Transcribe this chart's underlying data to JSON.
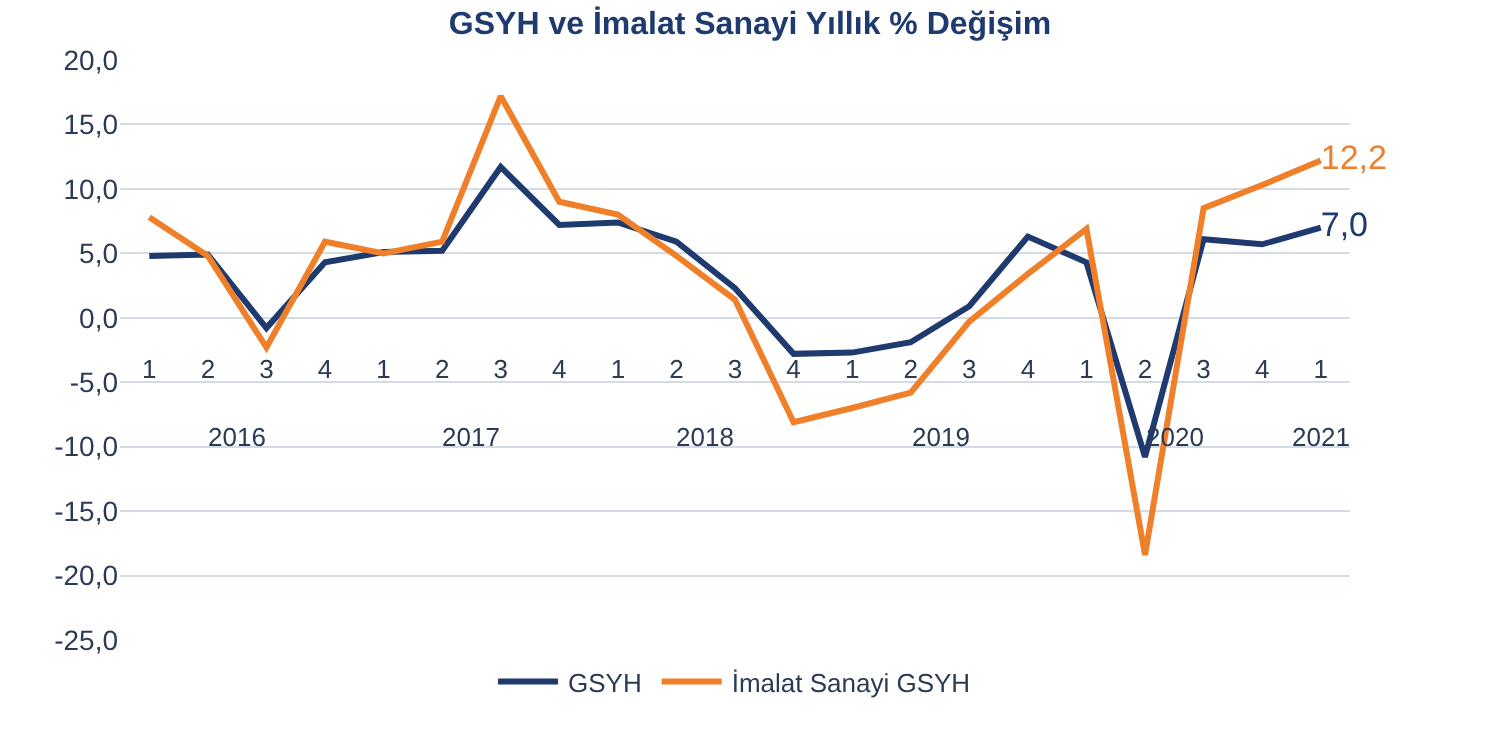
{
  "chart_data": {
    "type": "line",
    "title": "GSYH ve İmalat Sanayi Yıllık % Değişim",
    "categories": [
      "1",
      "2",
      "3",
      "4",
      "1",
      "2",
      "3",
      "4",
      "1",
      "2",
      "3",
      "4",
      "1",
      "2",
      "3",
      "4",
      "1",
      "2",
      "3",
      "4",
      "1"
    ],
    "annotations": [
      "2016",
      "2017",
      "2018",
      "2019",
      "2020",
      "2021"
    ],
    "series": [
      {
        "name": "GSYH",
        "color": "#1f3a6e",
        "values": [
          4.8,
          4.9,
          -0.8,
          4.3,
          5.1,
          5.2,
          11.7,
          7.2,
          7.4,
          5.9,
          2.3,
          -2.8,
          -2.7,
          -1.9,
          0.9,
          6.3,
          4.3,
          -10.8,
          6.1,
          5.7,
          7.0
        ],
        "value_labels": [
          null,
          null,
          null,
          null,
          null,
          null,
          null,
          null,
          null,
          null,
          null,
          null,
          null,
          null,
          null,
          null,
          null,
          null,
          null,
          null,
          "7,0"
        ]
      },
      {
        "name": "İmalat Sanayi GSYH",
        "color": "#f07f2a",
        "values": [
          7.8,
          4.8,
          -2.3,
          5.9,
          5.0,
          5.9,
          17.2,
          9.0,
          8.0,
          4.8,
          1.4,
          -8.1,
          -7.0,
          -5.8,
          -0.3,
          3.4,
          6.9,
          -18.4,
          8.5,
          10.3,
          12.2
        ],
        "value_labels": [
          null,
          null,
          null,
          null,
          null,
          null,
          null,
          null,
          null,
          null,
          null,
          null,
          null,
          null,
          null,
          null,
          null,
          null,
          null,
          null,
          "12,2"
        ]
      }
    ],
    "ylim": [
      -25,
      20
    ],
    "yticks": [
      {
        "value": -25,
        "label": "-25,0"
      },
      {
        "value": -20,
        "label": "-20,0"
      },
      {
        "value": -15,
        "label": "-15,0"
      },
      {
        "value": -10,
        "label": "-10,0"
      },
      {
        "value": -5,
        "label": "-5,0"
      },
      {
        "value": 0,
        "label": "0,0"
      },
      {
        "value": 5,
        "label": "5,0"
      },
      {
        "value": 10,
        "label": "10,0"
      },
      {
        "value": 15,
        "label": "15,0"
      },
      {
        "value": 20,
        "label": "20,0"
      }
    ],
    "grid": "y",
    "legend": "bottom",
    "marker": "none",
    "line_style": "solid"
  }
}
